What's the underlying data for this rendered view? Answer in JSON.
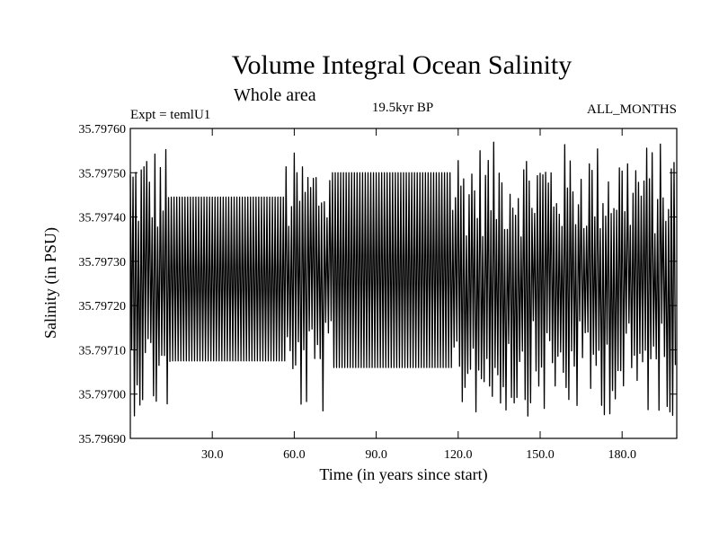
{
  "chart_data": {
    "type": "line",
    "title": "Volume Integral Ocean Salinity",
    "subtitle": "Whole area",
    "experiment": "Expt = temlU1",
    "period": "19.5kyr BP",
    "months": "ALL_MONTHS",
    "xlabel": "Time (in years since start)",
    "ylabel": "Salinity (in PSU)",
    "xlim": [
      0,
      200
    ],
    "ylim": [
      35.7969,
      35.7976
    ],
    "x_ticks": [
      30,
      60,
      90,
      120,
      150,
      180
    ],
    "x_tick_labels": [
      "30.0",
      "60.0",
      "90.0",
      "120.0",
      "150.0",
      "180.0"
    ],
    "y_ticks": [
      35.7969,
      35.797,
      35.7971,
      35.7972,
      35.7973,
      35.7974,
      35.7975,
      35.7976
    ],
    "y_tick_labels": [
      "35.79690",
      "35.79700",
      "35.79710",
      "35.79720",
      "35.79730",
      "35.79740",
      "35.79750",
      "35.79760"
    ],
    "grid": false,
    "line_color": "#000000",
    "oscillations_per_year": 1,
    "segments": [
      {
        "x_start": 0,
        "x_end": 15,
        "center": 35.79726,
        "max": 35.79757,
        "min": 35.79695,
        "regular": false
      },
      {
        "x_start": 15,
        "x_end": 57,
        "center": 35.79726,
        "max": 35.797445,
        "min": 35.797075,
        "regular": true
      },
      {
        "x_start": 57,
        "x_end": 74,
        "center": 35.79726,
        "max": 35.79755,
        "min": 35.79695,
        "regular": false
      },
      {
        "x_start": 74,
        "x_end": 118,
        "center": 35.79728,
        "max": 35.7975,
        "min": 35.79706,
        "regular": true
      },
      {
        "x_start": 118,
        "x_end": 200,
        "center": 35.79726,
        "max": 35.79757,
        "min": 35.79695,
        "regular": false
      }
    ]
  }
}
